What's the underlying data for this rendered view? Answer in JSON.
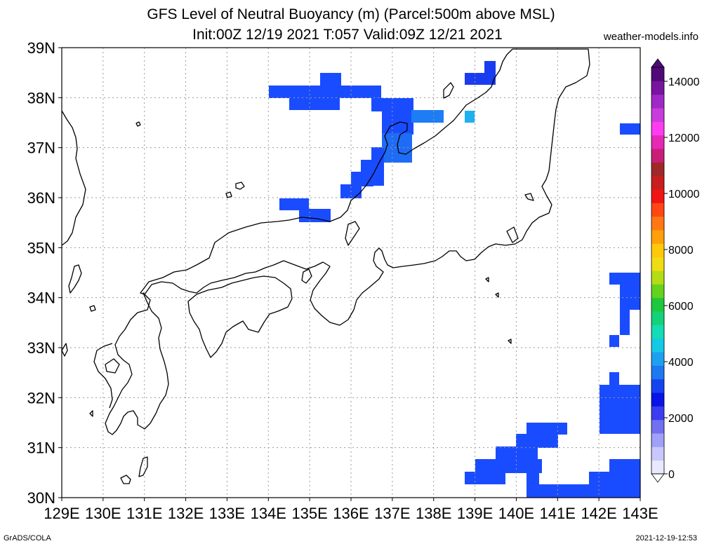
{
  "header": {
    "title_line1": "GFS Level of Neutral Buoyancy (m) (Parcel:500m above MSL)",
    "title_line2": "Init:00Z 12/19 2021 T:057 Valid:09Z 12/21 2021",
    "site": "weather-models.info"
  },
  "footer": {
    "left": "GrADS/COLA",
    "right": "2021-12-19-12:53"
  },
  "map": {
    "lon_min": 129,
    "lon_max": 143,
    "lat_min": 30,
    "lat_max": 39,
    "lon_labels": [
      "129E",
      "130E",
      "131E",
      "132E",
      "133E",
      "134E",
      "135E",
      "136E",
      "137E",
      "138E",
      "139E",
      "140E",
      "141E",
      "142E",
      "143E"
    ],
    "lat_labels": [
      "39N",
      "38N",
      "37N",
      "36N",
      "35N",
      "34N",
      "33N",
      "32N",
      "31N",
      "30N"
    ],
    "grid": "dotted",
    "colors": {
      "land_line": "#000000",
      "grid": "#9a9a9a",
      "fill_blue": "#1a4cff"
    }
  },
  "colorbar": {
    "labels": [
      "14000",
      "12000",
      "10000",
      "8000",
      "6000",
      "4000",
      "2000",
      "0"
    ],
    "colors": [
      "#e8e8ff",
      "#c8c8ff",
      "#a0a0f8",
      "#7070f0",
      "#3c3cf0",
      "#0a14e8",
      "#1444f0",
      "#1e78f0",
      "#1ea0f0",
      "#14c8e6",
      "#14dcb4",
      "#14d278",
      "#1ec83c",
      "#64d21e",
      "#b4dc14",
      "#f0dc14",
      "#ffc80a",
      "#ffa00a",
      "#ff7814",
      "#ff4614",
      "#f01414",
      "#c81e1e",
      "#a02828",
      "#c81e78",
      "#e628b4",
      "#ff3cf0",
      "#c83cdc",
      "#a028c8",
      "#7814a0",
      "#500a78"
    ]
  }
}
